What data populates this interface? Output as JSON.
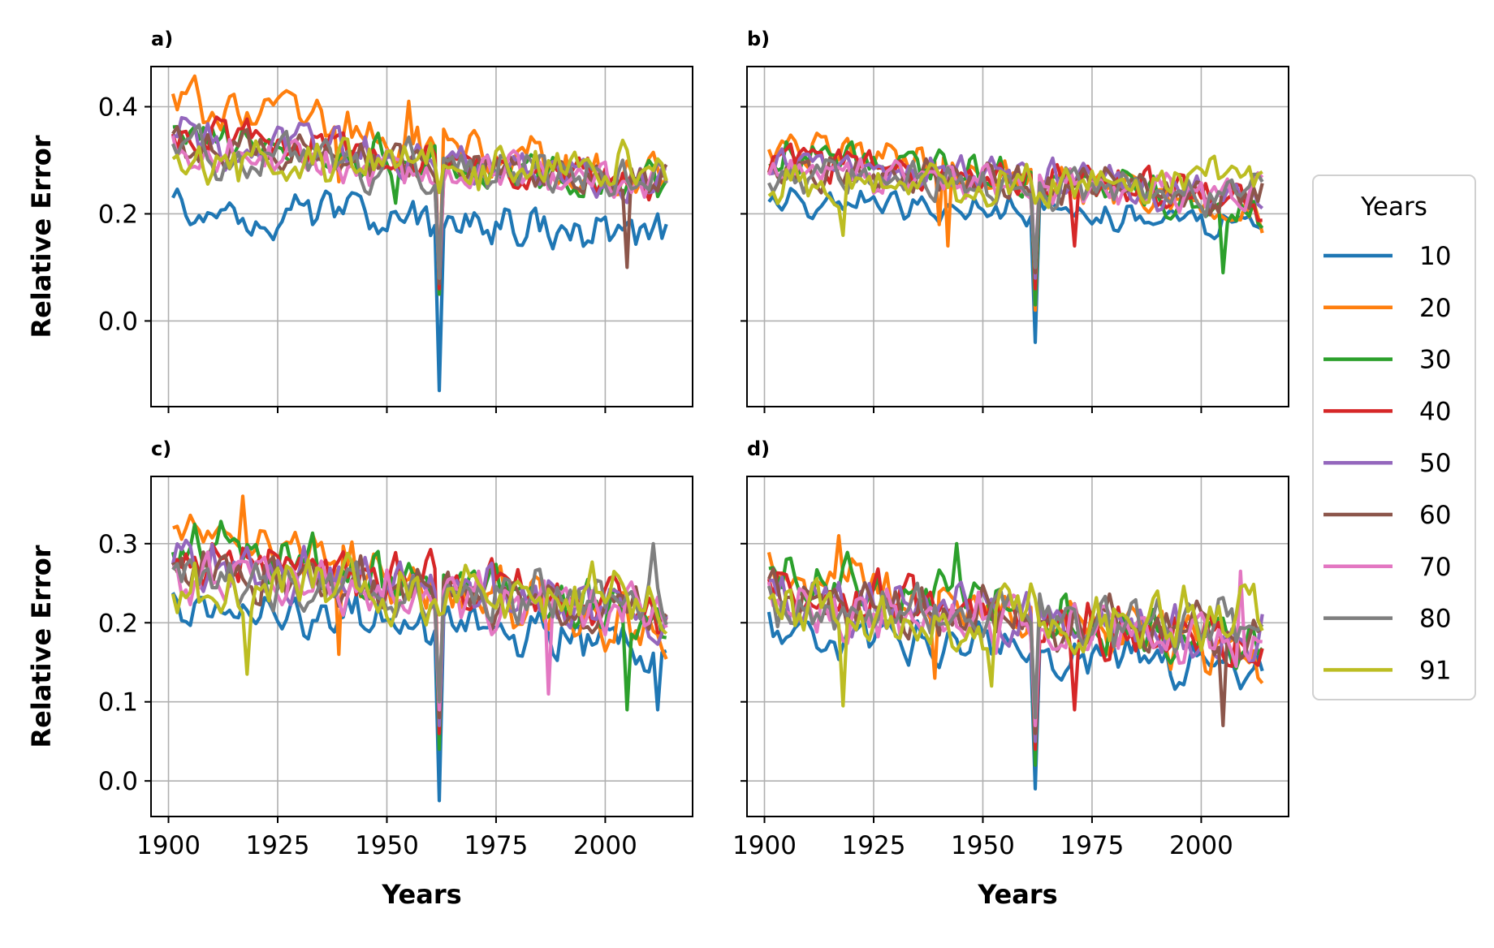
{
  "legend": {
    "title": "Years",
    "entries": [
      {
        "label": "10",
        "color": "#1f77b4"
      },
      {
        "label": "20",
        "color": "#ff7f0e"
      },
      {
        "label": "30",
        "color": "#2ca02c"
      },
      {
        "label": "40",
        "color": "#d62728"
      },
      {
        "label": "50",
        "color": "#9467bd"
      },
      {
        "label": "60",
        "color": "#8c564b"
      },
      {
        "label": "70",
        "color": "#e377c2"
      },
      {
        "label": "80",
        "color": "#7f7f7f"
      },
      {
        "label": "91",
        "color": "#bcbd22"
      }
    ]
  },
  "chart_data": [
    {
      "panel": "a)",
      "type": "line",
      "xlabel": "",
      "ylabel": "Relative Error",
      "xlim": [
        1896,
        2020
      ],
      "ylim": [
        -0.16,
        0.475
      ],
      "xticks": [
        1900,
        1925,
        1950,
        1975,
        2000
      ],
      "yticks": [
        0.0,
        0.2,
        0.4
      ],
      "ytick_labels": [
        "0.0",
        "0.2",
        "0.4"
      ],
      "show_xtick_labels": false,
      "show_ytick_labels": true,
      "grid": true,
      "x_range": [
        1901,
        2014
      ],
      "series": [
        {
          "name": "10",
          "base": 0.21,
          "drift": -0.05,
          "amp": 0.03,
          "spikes": [
            [
              1962,
              -0.13
            ]
          ]
        },
        {
          "name": "20",
          "base": 0.41,
          "drift": -0.16,
          "amp": 0.035,
          "spikes": [
            [
              1939,
              0.26
            ],
            [
              1955,
              0.41
            ],
            [
              1962,
              0.05
            ]
          ]
        },
        {
          "name": "30",
          "base": 0.36,
          "drift": -0.12,
          "amp": 0.03,
          "spikes": [
            [
              1962,
              0.05
            ],
            [
              1952,
              0.22
            ]
          ]
        },
        {
          "name": "40",
          "base": 0.35,
          "drift": -0.1,
          "amp": 0.03,
          "spikes": [
            [
              1962,
              0.06
            ]
          ]
        },
        {
          "name": "50",
          "base": 0.34,
          "drift": -0.08,
          "amp": 0.03,
          "spikes": [
            [
              1962,
              0.07
            ]
          ]
        },
        {
          "name": "60",
          "base": 0.33,
          "drift": -0.07,
          "amp": 0.03,
          "spikes": [
            [
              1962,
              0.07
            ],
            [
              2005,
              0.1
            ]
          ]
        },
        {
          "name": "70",
          "base": 0.32,
          "drift": -0.07,
          "amp": 0.03,
          "spikes": [
            [
              1962,
              0.08
            ]
          ]
        },
        {
          "name": "80",
          "base": 0.31,
          "drift": -0.04,
          "amp": 0.03,
          "spikes": [
            [
              1962,
              0.08
            ]
          ]
        },
        {
          "name": "91",
          "base": 0.29,
          "drift": 0.0,
          "amp": 0.035,
          "spikes": [
            [
              1962,
              0.24
            ]
          ]
        }
      ]
    },
    {
      "panel": "b)",
      "type": "line",
      "xlabel": "",
      "ylabel": "",
      "xlim": [
        1896,
        2020
      ],
      "ylim": [
        -0.16,
        0.475
      ],
      "xticks": [
        1900,
        1925,
        1950,
        1975,
        2000
      ],
      "yticks": [
        0.0,
        0.2,
        0.4
      ],
      "ytick_labels": [
        "0.0",
        "0.2",
        "0.4"
      ],
      "show_xtick_labels": false,
      "show_ytick_labels": false,
      "grid": true,
      "x_range": [
        1901,
        2014
      ],
      "series": [
        {
          "name": "10",
          "base": 0.23,
          "drift": -0.05,
          "amp": 0.02,
          "spikes": [
            [
              1962,
              -0.04
            ]
          ]
        },
        {
          "name": "20",
          "base": 0.34,
          "drift": -0.14,
          "amp": 0.025,
          "spikes": [
            [
              1940,
              0.18
            ],
            [
              1942,
              0.14
            ],
            [
              1962,
              0.02
            ]
          ]
        },
        {
          "name": "30",
          "base": 0.32,
          "drift": -0.11,
          "amp": 0.025,
          "spikes": [
            [
              1962,
              0.03
            ],
            [
              2005,
              0.09
            ]
          ]
        },
        {
          "name": "40",
          "base": 0.31,
          "drift": -0.09,
          "amp": 0.025,
          "spikes": [
            [
              1962,
              0.06
            ],
            [
              1971,
              0.14
            ]
          ]
        },
        {
          "name": "50",
          "base": 0.3,
          "drift": -0.07,
          "amp": 0.025,
          "spikes": [
            [
              1962,
              0.08
            ]
          ]
        },
        {
          "name": "60",
          "base": 0.29,
          "drift": -0.06,
          "amp": 0.025,
          "spikes": [
            [
              1962,
              0.09
            ]
          ]
        },
        {
          "name": "70",
          "base": 0.28,
          "drift": -0.05,
          "amp": 0.025,
          "spikes": [
            [
              1962,
              0.1
            ]
          ]
        },
        {
          "name": "80",
          "base": 0.27,
          "drift": -0.03,
          "amp": 0.025,
          "spikes": [
            [
              1962,
              0.1
            ]
          ]
        },
        {
          "name": "91",
          "base": 0.26,
          "drift": 0.0,
          "amp": 0.03,
          "spikes": [
            [
              1918,
              0.16
            ],
            [
              1962,
              0.22
            ]
          ]
        }
      ]
    },
    {
      "panel": "c)",
      "type": "line",
      "xlabel": "Years",
      "ylabel": "Relative Error",
      "xlim": [
        1896,
        2020
      ],
      "ylim": [
        -0.045,
        0.385
      ],
      "xticks": [
        1900,
        1925,
        1950,
        1975,
        2000
      ],
      "yticks": [
        0.0,
        0.1,
        0.2,
        0.3
      ],
      "ytick_labels": [
        "0.0",
        "0.1",
        "0.2",
        "0.3"
      ],
      "show_xtick_labels": true,
      "show_ytick_labels": true,
      "xtick_labels": [
        "1900",
        "1925",
        "1950",
        "1975",
        "2000"
      ],
      "grid": true,
      "x_range": [
        1901,
        2014
      ],
      "series": [
        {
          "name": "10",
          "base": 0.23,
          "drift": -0.06,
          "amp": 0.02,
          "spikes": [
            [
              1962,
              -0.025
            ],
            [
              2012,
              0.09
            ]
          ]
        },
        {
          "name": "20",
          "base": 0.32,
          "drift": -0.13,
          "amp": 0.025,
          "spikes": [
            [
              1917,
              0.36
            ],
            [
              1939,
              0.16
            ],
            [
              1962,
              0.05
            ]
          ]
        },
        {
          "name": "30",
          "base": 0.3,
          "drift": -0.1,
          "amp": 0.025,
          "spikes": [
            [
              1962,
              0.04
            ],
            [
              2005,
              0.09
            ]
          ]
        },
        {
          "name": "40",
          "base": 0.29,
          "drift": -0.08,
          "amp": 0.025,
          "spikes": [
            [
              1962,
              0.06
            ]
          ]
        },
        {
          "name": "50",
          "base": 0.28,
          "drift": -0.07,
          "amp": 0.025,
          "spikes": [
            [
              1962,
              0.07
            ]
          ]
        },
        {
          "name": "60",
          "base": 0.27,
          "drift": -0.06,
          "amp": 0.025,
          "spikes": [
            [
              1962,
              0.08
            ]
          ]
        },
        {
          "name": "70",
          "base": 0.26,
          "drift": -0.05,
          "amp": 0.025,
          "spikes": [
            [
              1962,
              0.09
            ],
            [
              1987,
              0.11
            ]
          ]
        },
        {
          "name": "80",
          "base": 0.26,
          "drift": -0.03,
          "amp": 0.025,
          "spikes": [
            [
              1962,
              0.1
            ],
            [
              2011,
              0.3
            ]
          ]
        },
        {
          "name": "91",
          "base": 0.24,
          "drift": 0.0,
          "amp": 0.03,
          "spikes": [
            [
              1918,
              0.135
            ],
            [
              1962,
              0.21
            ]
          ]
        }
      ]
    },
    {
      "panel": "d)",
      "type": "line",
      "xlabel": "Years",
      "ylabel": "",
      "xlim": [
        1896,
        2020
      ],
      "ylim": [
        -0.045,
        0.385
      ],
      "xticks": [
        1900,
        1925,
        1950,
        1975,
        2000
      ],
      "yticks": [
        0.0,
        0.1,
        0.2,
        0.3
      ],
      "ytick_labels": [
        "0.0",
        "0.1",
        "0.2",
        "0.3"
      ],
      "show_xtick_labels": true,
      "show_ytick_labels": false,
      "xtick_labels": [
        "1900",
        "1925",
        "1950",
        "1975",
        "2000"
      ],
      "grid": true,
      "x_range": [
        1901,
        2014
      ],
      "series": [
        {
          "name": "10",
          "base": 0.19,
          "drift": -0.05,
          "amp": 0.02,
          "spikes": [
            [
              1962,
              -0.01
            ]
          ]
        },
        {
          "name": "20",
          "base": 0.27,
          "drift": -0.12,
          "amp": 0.025,
          "spikes": [
            [
              1917,
              0.31
            ],
            [
              1939,
              0.13
            ],
            [
              1962,
              0.03
            ]
          ]
        },
        {
          "name": "30",
          "base": 0.26,
          "drift": -0.09,
          "amp": 0.025,
          "spikes": [
            [
              1962,
              0.02
            ],
            [
              1944,
              0.3
            ]
          ]
        },
        {
          "name": "40",
          "base": 0.25,
          "drift": -0.08,
          "amp": 0.025,
          "spikes": [
            [
              1962,
              0.04
            ],
            [
              1971,
              0.09
            ]
          ]
        },
        {
          "name": "50",
          "base": 0.24,
          "drift": -0.06,
          "amp": 0.025,
          "spikes": [
            [
              1962,
              0.05
            ]
          ]
        },
        {
          "name": "60",
          "base": 0.23,
          "drift": -0.05,
          "amp": 0.025,
          "spikes": [
            [
              1962,
              0.06
            ],
            [
              2005,
              0.07
            ]
          ]
        },
        {
          "name": "70",
          "base": 0.22,
          "drift": -0.04,
          "amp": 0.025,
          "spikes": [
            [
              1962,
              0.07
            ],
            [
              2009,
              0.265
            ]
          ]
        },
        {
          "name": "80",
          "base": 0.22,
          "drift": -0.02,
          "amp": 0.025,
          "spikes": [
            [
              1962,
              0.08
            ]
          ]
        },
        {
          "name": "91",
          "base": 0.21,
          "drift": 0.0,
          "amp": 0.03,
          "spikes": [
            [
              1918,
              0.095
            ],
            [
              1952,
              0.12
            ]
          ]
        }
      ]
    }
  ]
}
